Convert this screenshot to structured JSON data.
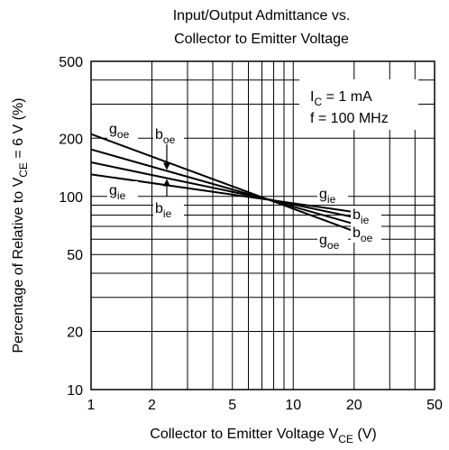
{
  "chart_data": {
    "type": "line",
    "title": [
      "Input/Output Admittance vs.",
      "Collector to Emitter Voltage"
    ],
    "xlabel": {
      "text": "Collector to Emitter Voltage  V",
      "sub": "CE",
      "unit": "  (V)"
    },
    "ylabel": {
      "text": "Percentage of Relative to V",
      "sub": "CE",
      "tail": " = 6 V  (%)"
    },
    "x_scale": "log",
    "y_scale": "log",
    "xlim": [
      1,
      50
    ],
    "ylim": [
      10,
      500
    ],
    "x_ticks": [
      1,
      2,
      5,
      10,
      20,
      50
    ],
    "x_tick_labels": [
      "1",
      "2",
      "5",
      "10",
      "20",
      "50"
    ],
    "y_ticks": [
      10,
      20,
      50,
      100,
      200,
      500
    ],
    "y_tick_labels": [
      "10",
      "20",
      "50",
      "100",
      "200",
      "500"
    ],
    "grid": true,
    "conditions": [
      {
        "main": "I",
        "sub": "C",
        "rest": " = 1 mA"
      },
      {
        "main": "f = 100 MHz",
        "sub": "",
        "rest": ""
      }
    ],
    "series": [
      {
        "name": "g_oe",
        "label": "g",
        "sub": "oe",
        "x": [
          1,
          20
        ],
        "y": [
          210,
          66
        ]
      },
      {
        "name": "b_oe",
        "label": "b",
        "sub": "oe",
        "x": [
          1,
          20
        ],
        "y": [
          175,
          72
        ]
      },
      {
        "name": "b_ie",
        "label": "b",
        "sub": "ie",
        "x": [
          1,
          20
        ],
        "y": [
          150,
          78
        ]
      },
      {
        "name": "g_ie",
        "label": "g",
        "sub": "ie",
        "x": [
          1,
          20
        ],
        "y": [
          130,
          83
        ]
      }
    ]
  }
}
